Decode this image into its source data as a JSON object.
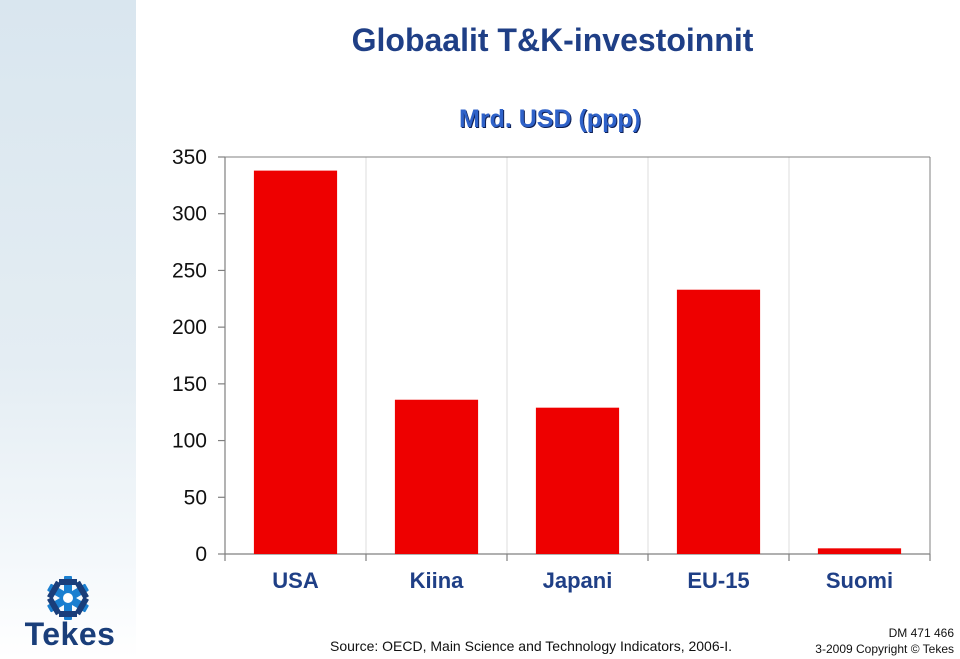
{
  "slide": {
    "title": "Globaalit T&K-investoinnit",
    "source": "Source: OECD, Main Science and Technology Indicators, 2006-I.",
    "doc_id": "DM 471 466",
    "copyright": "3-2009 Copyright © Tekes",
    "logo_text": "Tekes",
    "logo_icon": "tekes-snowflake-icon"
  },
  "chart_data": {
    "type": "bar",
    "title": "",
    "subtitle": "Mrd. USD (ppp)",
    "xlabel": "",
    "ylabel": "",
    "categories": [
      "USA",
      "Kiina",
      "Japani",
      "EU-15",
      "Suomi"
    ],
    "series": [
      {
        "values": [
          338,
          136,
          129,
          233,
          5
        ]
      }
    ],
    "ylim": [
      0,
      350
    ],
    "yticks": [
      0,
      50,
      100,
      150,
      200,
      250,
      300,
      350
    ],
    "grid": "vertical",
    "legend": "none"
  },
  "colors": {
    "bar": "#ee0000",
    "title": "#1f3f86",
    "subtitle": "#2f62c9",
    "axis": "#808080"
  }
}
